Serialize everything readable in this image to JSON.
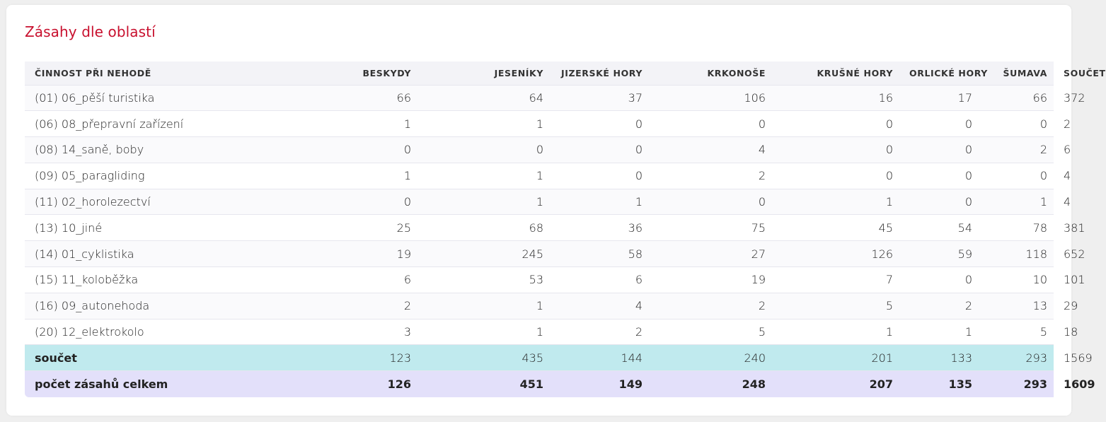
{
  "title": "Zásahy dle oblastí",
  "colors": {
    "title": "#c8102e",
    "header_bg": "#f3f3f7",
    "sum_row_bg": "#c0eaee",
    "total_row_bg": "#e3e0fa"
  },
  "table": {
    "headers": [
      "ČINNOST PŘI NEHODĚ",
      "BESKYDY",
      "JESENÍKY",
      "JIZERSKÉ HORY",
      "KRKONOŠE",
      "KRUŠNÉ HORY",
      "ORLICKÉ HORY",
      "ŠUMAVA",
      "SOUČET"
    ],
    "rows": [
      [
        "(01) 06_pěší turistika",
        "66",
        "64",
        "37",
        "106",
        "16",
        "17",
        "66",
        "372"
      ],
      [
        "(06) 08_přepravní zařízení",
        "1",
        "1",
        "0",
        "0",
        "0",
        "0",
        "0",
        "2"
      ],
      [
        "(08) 14_saně, boby",
        "0",
        "0",
        "0",
        "4",
        "0",
        "0",
        "2",
        "6"
      ],
      [
        "(09) 05_paragliding",
        "1",
        "1",
        "0",
        "2",
        "0",
        "0",
        "0",
        "4"
      ],
      [
        "(11) 02_horolezectví",
        "0",
        "1",
        "1",
        "0",
        "1",
        "0",
        "1",
        "4"
      ],
      [
        "(13) 10_jiné",
        "25",
        "68",
        "36",
        "75",
        "45",
        "54",
        "78",
        "381"
      ],
      [
        "(14) 01_cyklistika",
        "19",
        "245",
        "58",
        "27",
        "126",
        "59",
        "118",
        "652"
      ],
      [
        "(15) 11_koloběžka",
        "6",
        "53",
        "6",
        "19",
        "7",
        "0",
        "10",
        "101"
      ],
      [
        "(16) 09_autonehoda",
        "2",
        "1",
        "4",
        "2",
        "5",
        "2",
        "13",
        "29"
      ],
      [
        "(20) 12_elektrokolo",
        "3",
        "1",
        "2",
        "5",
        "1",
        "1",
        "5",
        "18"
      ]
    ],
    "sum_row": [
      "součet",
      "123",
      "435",
      "144",
      "240",
      "201",
      "133",
      "293",
      "1569"
    ],
    "total_row": [
      "počet zásahů celkem",
      "126",
      "451",
      "149",
      "248",
      "207",
      "135",
      "293",
      "1609"
    ]
  }
}
